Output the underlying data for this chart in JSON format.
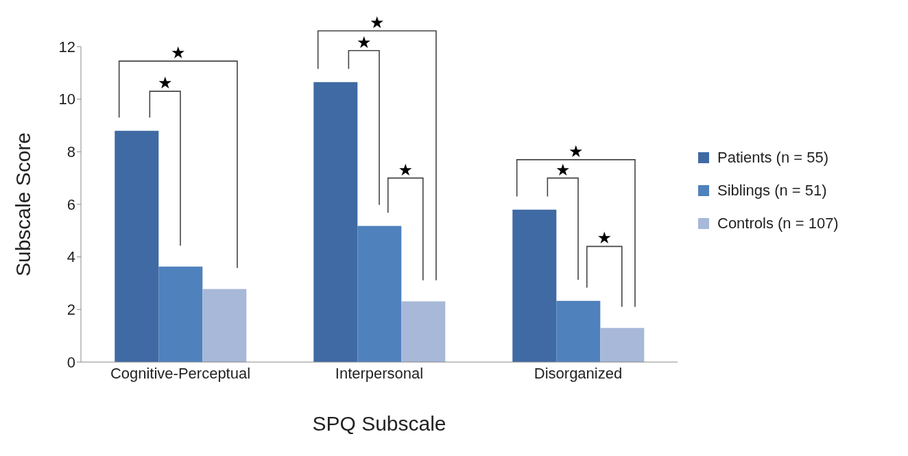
{
  "chart_data": {
    "type": "bar",
    "categories": [
      "Cognitive-Perceptual",
      "Interpersonal",
      "Disorganized"
    ],
    "series": [
      {
        "name": "Patients (n = 55)",
        "color": "#3f6aa3",
        "values": [
          8.8,
          10.65,
          5.8
        ]
      },
      {
        "name": "Siblings (n = 51)",
        "color": "#4f81bd",
        "values": [
          3.63,
          5.18,
          2.33
        ]
      },
      {
        "name": "Controls (n = 107)",
        "color": "#a7b8d8",
        "values": [
          2.78,
          2.31,
          1.3
        ]
      }
    ],
    "xlabel": "SPQ Subscale",
    "ylabel": "Subscale Score",
    "ylim": [
      0,
      12
    ],
    "yticks": [
      0,
      2,
      4,
      6,
      8,
      10,
      12
    ],
    "grid": false,
    "legend": "right",
    "annotations": [
      "★",
      "★",
      "★",
      "★",
      "★",
      "★",
      "★",
      "★"
    ]
  }
}
